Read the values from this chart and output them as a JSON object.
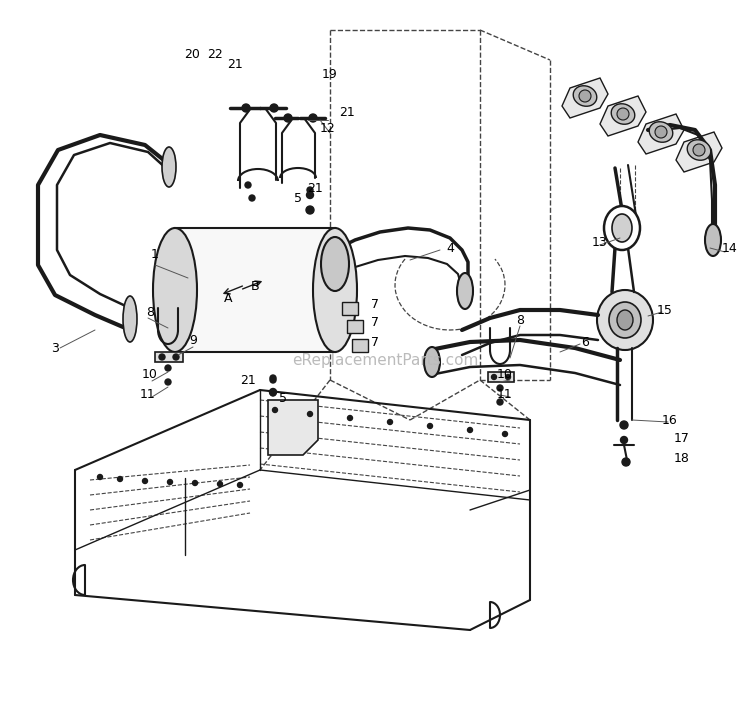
{
  "bg_color": "#ffffff",
  "line_color": "#1a1a1a",
  "label_color": "#000000",
  "dashed_color": "#444444",
  "watermark_text": "eReplacementParts.com",
  "watermark_color": "#bbbbbb",
  "figsize": [
    7.5,
    7.08
  ],
  "dpi": 100
}
